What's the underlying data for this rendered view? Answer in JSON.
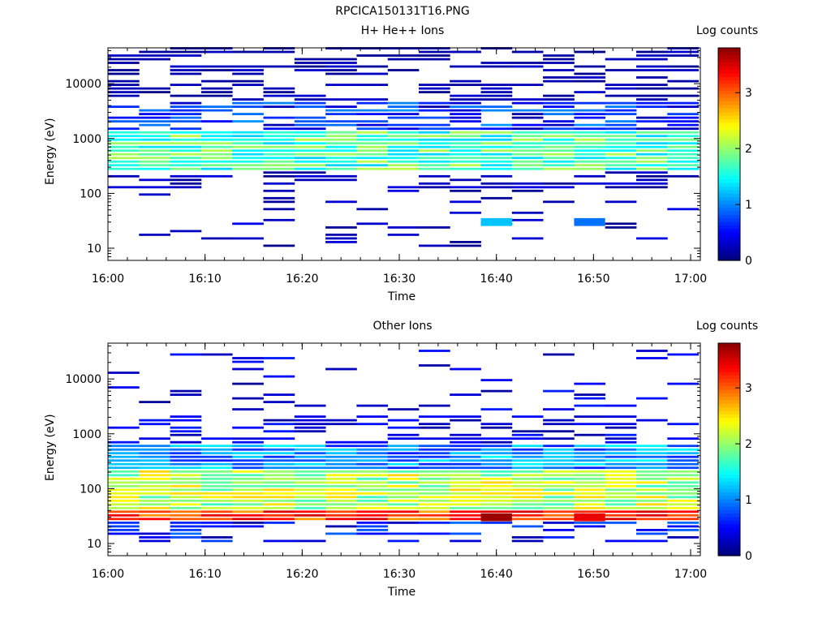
{
  "figure_title": "RPCICA150131T16.PNG",
  "chart_data": [
    {
      "type": "heatmap",
      "title": "H+ He++ Ions",
      "xlabel": "Time",
      "ylabel": "Energy (eV)",
      "y_scale": "log",
      "xlim": [
        "16:00",
        "17:01"
      ],
      "ylim": [
        6,
        45000
      ],
      "x_ticks": [
        "16:00",
        "16:10",
        "16:20",
        "16:30",
        "16:40",
        "16:50",
        "17:00"
      ],
      "y_ticks": [
        "10",
        "100",
        "1000",
        "10000"
      ],
      "colorbar": {
        "label": "Log counts",
        "min": 0,
        "max": 3.8,
        "ticks": [
          "0",
          "1",
          "2",
          "3"
        ],
        "colormap": "jet"
      },
      "time_bins": 19,
      "time_bin_minutes": 3.2,
      "energy_bins_per_decade": 15,
      "description_of_data": {
        "main_band_eV": [
          250,
          1300
        ],
        "main_band_log_counts": 1.7,
        "upper_sparse_region_eV": [
          1300,
          45000
        ],
        "upper_sparse_log_counts": 0.1,
        "low_sparse_region_eV": [
          10,
          250
        ]
      },
      "notable_points": [
        {
          "time": "16:39",
          "energy_eV": 30,
          "log_counts": 1.2
        },
        {
          "time": "16:49",
          "energy_eV": 30,
          "log_counts": 0.9
        }
      ]
    },
    {
      "type": "heatmap",
      "title": "Other Ions",
      "xlabel": "Time",
      "ylabel": "Energy (eV)",
      "y_scale": "log",
      "xlim": [
        "16:00",
        "17:01"
      ],
      "ylim": [
        6,
        45000
      ],
      "x_ticks": [
        "16:00",
        "16:10",
        "16:20",
        "16:30",
        "16:40",
        "16:50",
        "17:00"
      ],
      "y_ticks": [
        "10",
        "100",
        "1000",
        "10000"
      ],
      "colorbar": {
        "label": "Log counts",
        "min": 0,
        "max": 3.8,
        "ticks": [
          "0",
          "1",
          "2",
          "3"
        ],
        "colormap": "jet"
      },
      "time_bins": 19,
      "time_bin_minutes": 3.2,
      "energy_bins_per_decade": 15,
      "description_of_data": {
        "main_band_eV": [
          24,
          600
        ],
        "peak_band_eV": [
          24,
          38
        ],
        "peak_log_counts": 3.3,
        "mid_band_log_counts": 2.0
      },
      "notable_points": [
        {
          "time": "16:40",
          "energy_eV": 30,
          "log_counts": 3.7
        },
        {
          "time": "16:50",
          "energy_eV": 30,
          "log_counts": 3.4
        }
      ]
    }
  ]
}
